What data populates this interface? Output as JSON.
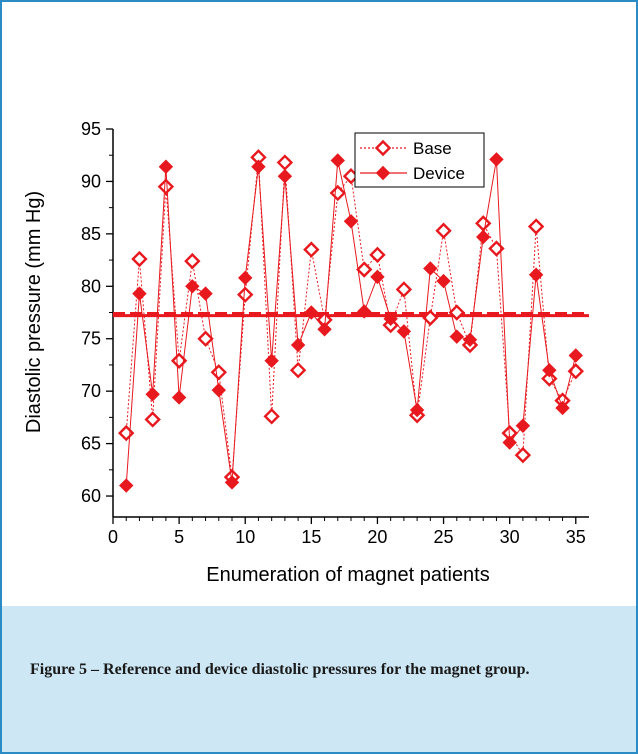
{
  "caption": {
    "text": "Figure 5 – Reference and device diastolic pressures for the magnet group."
  },
  "colors": {
    "border": "#2a8bc5",
    "caption_background": "#cde7f4",
    "series": "#e8191e"
  },
  "chart_data": {
    "type": "line",
    "title": "",
    "xlabel": "Enumeration of magnet patients",
    "ylabel": "Diastolic pressure (mm Hg)",
    "xlim": [
      0,
      36
    ],
    "ylim": [
      58,
      95
    ],
    "xticks": [
      0,
      5,
      10,
      15,
      20,
      25,
      30,
      35
    ],
    "yticks": [
      60,
      65,
      70,
      75,
      80,
      85,
      90,
      95
    ],
    "x": [
      1,
      2,
      3,
      4,
      5,
      6,
      7,
      8,
      9,
      10,
      11,
      12,
      13,
      14,
      15,
      16,
      17,
      18,
      19,
      20,
      21,
      22,
      23,
      24,
      25,
      26,
      27,
      28,
      29,
      30,
      31,
      32,
      33,
      34,
      35
    ],
    "series": [
      {
        "name": "Base",
        "marker": "open-diamond",
        "line": "dotted",
        "mean": 77.4,
        "values": [
          66.0,
          82.6,
          67.3,
          89.5,
          72.9,
          82.4,
          75.0,
          71.8,
          61.8,
          79.2,
          92.3,
          67.6,
          91.8,
          72.0,
          83.5,
          76.8,
          88.9,
          90.5,
          81.6,
          83.0,
          76.3,
          79.7,
          67.7,
          77.0,
          85.3,
          77.5,
          74.4,
          86.0,
          83.6,
          66.0,
          63.9,
          85.7,
          71.2,
          69.1,
          71.9
        ]
      },
      {
        "name": "Device",
        "marker": "filled-diamond",
        "line": "solid",
        "mean": 77.2,
        "values": [
          61.0,
          79.3,
          69.7,
          91.4,
          69.4,
          80.0,
          79.3,
          70.1,
          61.3,
          80.8,
          91.4,
          72.9,
          90.5,
          74.4,
          77.5,
          75.9,
          92.0,
          86.2,
          77.6,
          80.9,
          76.9,
          75.7,
          68.2,
          81.7,
          80.5,
          75.2,
          74.9,
          84.7,
          92.1,
          65.1,
          66.7,
          81.1,
          72.0,
          68.4,
          73.4
        ]
      }
    ],
    "legend": "top-right"
  }
}
